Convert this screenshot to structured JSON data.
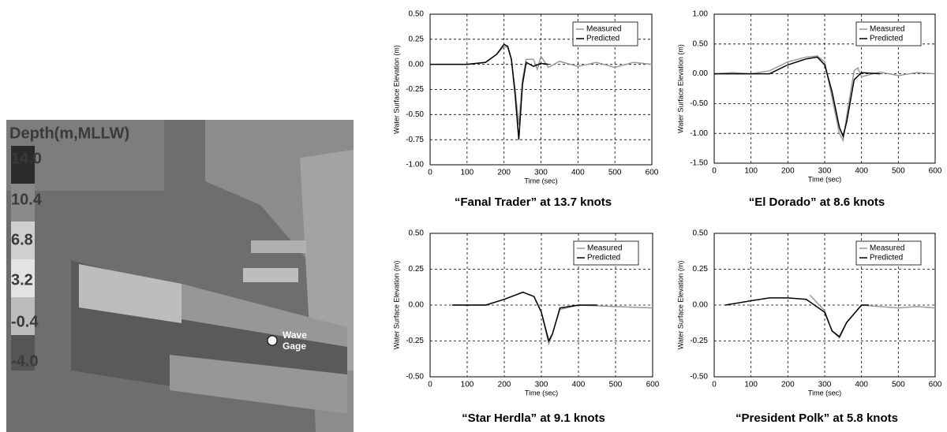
{
  "map": {
    "legend_title": "Depth(m,MLLW)",
    "legend_labels": [
      "14.0",
      "10.4",
      "6.8",
      "3.2",
      "-0.4",
      "-4.0"
    ],
    "gage_label": [
      "Wave",
      "Gage"
    ]
  },
  "chart_data": [
    {
      "type": "line",
      "title": "“Fanal Trader” at 13.7 knots",
      "xlabel": "Time (sec)",
      "ylabel": "Water Surface Elevation (m)",
      "xlim": [
        0,
        600
      ],
      "xticks": [
        0,
        100,
        200,
        300,
        400,
        500,
        600
      ],
      "ylim": [
        -1,
        0.5
      ],
      "yticks": [
        {
          "value": 0.5,
          "label": "0.50"
        },
        {
          "value": 0.25,
          "label": "0.25"
        },
        {
          "value": 0,
          "label": "0.00"
        },
        {
          "value": -0.25,
          "label": "-0.25"
        },
        {
          "value": -0.5,
          "label": "-0.50"
        },
        {
          "value": -0.75,
          "label": "-0.75"
        },
        {
          "value": -1,
          "label": "-1.00"
        }
      ],
      "grid": true,
      "legend": "top-right",
      "series": [
        {
          "name": "Measured",
          "color": "#999999",
          "x": [
            0,
            50,
            100,
            150,
            180,
            200,
            210,
            220,
            230,
            240,
            250,
            260,
            280,
            290,
            300,
            320,
            350,
            400,
            450,
            500,
            550,
            600
          ],
          "values": [
            0,
            0,
            0,
            0.02,
            0.1,
            0.18,
            0.17,
            0.05,
            -0.25,
            -0.6,
            -0.15,
            0.05,
            0.05,
            -0.05,
            0.08,
            -0.03,
            0.03,
            -0.02,
            0.02,
            -0.03,
            0.02,
            0
          ]
        },
        {
          "name": "Predicted",
          "color": "#000000",
          "x": [
            0,
            50,
            100,
            150,
            180,
            200,
            210,
            220,
            230,
            240,
            250,
            260,
            280,
            300,
            320
          ],
          "values": [
            0,
            0,
            0,
            0.02,
            0.1,
            0.2,
            0.18,
            0.05,
            -0.3,
            -0.75,
            -0.2,
            0.02,
            -0.02,
            0.01,
            0
          ]
        }
      ]
    },
    {
      "type": "line",
      "title": "“El Dorado” at 8.6 knots",
      "xlabel": "Time (sec)",
      "ylabel": "Water Surface Elevation (m)",
      "xlim": [
        0,
        600
      ],
      "xticks": [
        0,
        100,
        200,
        300,
        400,
        500,
        600
      ],
      "ylim": [
        -1.5,
        1
      ],
      "yticks": [
        {
          "value": 1,
          "label": "1.00"
        },
        {
          "value": 0.5,
          "label": "0.50"
        },
        {
          "value": 0,
          "label": "0.00"
        },
        {
          "value": -0.5,
          "label": "-0.50"
        },
        {
          "value": -1,
          "label": "-1.00"
        },
        {
          "value": -1.5,
          "label": "-1.50"
        }
      ],
      "grid": true,
      "legend": "top-right",
      "series": [
        {
          "name": "Measured",
          "color": "#999999",
          "x": [
            0,
            50,
            100,
            150,
            200,
            250,
            280,
            300,
            320,
            340,
            350,
            360,
            380,
            390,
            400,
            450,
            500,
            550,
            600
          ],
          "values": [
            0,
            0.02,
            0,
            0.05,
            0.2,
            0.28,
            0.3,
            0.2,
            -0.4,
            -1.0,
            -1.12,
            -0.7,
            0.05,
            0.1,
            -0.05,
            0.03,
            -0.03,
            0.02,
            0
          ]
        },
        {
          "name": "Predicted",
          "color": "#000000",
          "x": [
            0,
            150,
            200,
            250,
            280,
            300,
            320,
            340,
            350,
            360,
            380,
            400,
            450
          ],
          "values": [
            0,
            0,
            0.15,
            0.25,
            0.28,
            0.15,
            -0.3,
            -0.9,
            -1.05,
            -0.8,
            -0.1,
            0.02,
            0
          ]
        }
      ]
    },
    {
      "type": "line",
      "title": "“Star Herdla” at 9.1 knots",
      "xlabel": "Time (sec)",
      "ylabel": "Water Surface Elevation (m)",
      "xlim": [
        0,
        600
      ],
      "xticks": [
        0,
        100,
        200,
        300,
        400,
        500,
        600
      ],
      "ylim": [
        -0.5,
        0.5
      ],
      "yticks": [
        {
          "value": 0.5,
          "label": "0.50"
        },
        {
          "value": 0.25,
          "label": "0.25"
        },
        {
          "value": 0,
          "label": "0.00"
        },
        {
          "value": -0.25,
          "label": "-0.25"
        },
        {
          "value": -0.5,
          "label": "-0.50"
        }
      ],
      "grid": true,
      "legend": "top-right",
      "series": [
        {
          "name": "Measured",
          "color": "#999999",
          "x": [
            60,
            150,
            200,
            250,
            280,
            300,
            320,
            330,
            350,
            400,
            500,
            600
          ],
          "values": [
            0,
            0,
            0.04,
            0.09,
            0.06,
            -0.05,
            -0.27,
            -0.2,
            -0.03,
            0,
            -0.01,
            -0.02
          ]
        },
        {
          "name": "Predicted",
          "color": "#000000",
          "x": [
            60,
            150,
            200,
            250,
            280,
            300,
            320,
            330,
            350,
            400,
            450
          ],
          "values": [
            0,
            0,
            0.04,
            0.09,
            0.06,
            -0.05,
            -0.25,
            -0.2,
            -0.02,
            0,
            0
          ]
        }
      ]
    },
    {
      "type": "line",
      "title": "“President Polk” at 5.8 knots",
      "xlabel": "Time (sec)",
      "ylabel": "Water Surface Elevation (m)",
      "xlim": [
        0,
        600
      ],
      "xticks": [
        0,
        100,
        200,
        300,
        400,
        500,
        600
      ],
      "ylim": [
        -0.5,
        0.5
      ],
      "yticks": [
        {
          "value": 0.5,
          "label": "0.50"
        },
        {
          "value": 0.25,
          "label": "0.25"
        },
        {
          "value": 0,
          "label": "0.00"
        },
        {
          "value": -0.25,
          "label": "-0.25"
        },
        {
          "value": -0.5,
          "label": "-0.50"
        }
      ],
      "grid": true,
      "legend": "top-right",
      "series": [
        {
          "name": "Measured",
          "color": "#999999",
          "x": [
            260,
            300,
            320,
            340,
            360,
            400,
            450,
            500,
            550,
            600
          ],
          "values": [
            0.07,
            -0.04,
            -0.18,
            -0.23,
            -0.12,
            0,
            -0.01,
            -0.02,
            -0.01,
            -0.02
          ]
        },
        {
          "name": "Predicted",
          "color": "#000000",
          "x": [
            30,
            100,
            150,
            200,
            250,
            300,
            320,
            340,
            360,
            400,
            420
          ],
          "values": [
            0,
            0.03,
            0.05,
            0.05,
            0.04,
            -0.05,
            -0.18,
            -0.22,
            -0.12,
            0,
            0
          ]
        }
      ]
    }
  ]
}
